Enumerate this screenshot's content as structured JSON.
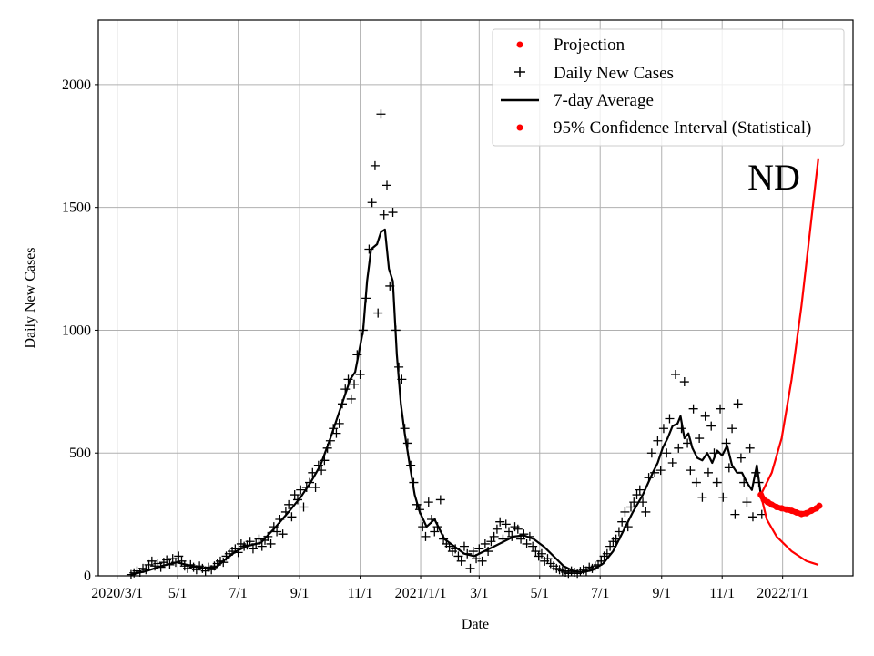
{
  "chart_data": {
    "type": "line",
    "title": "ND",
    "xlabel": "Date",
    "ylabel": "Daily New Cases",
    "x_unit": "days since 2020/3/1",
    "xlim": [
      -19,
      742
    ],
    "ylim": [
      0,
      2263
    ],
    "grid": true,
    "legend_placement": "top-right",
    "xticks": [
      {
        "day": 0,
        "label": "2020/3/1"
      },
      {
        "day": 61,
        "label": "5/1"
      },
      {
        "day": 122,
        "label": "7/1"
      },
      {
        "day": 184,
        "label": "9/1"
      },
      {
        "day": 245,
        "label": "11/1"
      },
      {
        "day": 306,
        "label": "2021/1/1"
      },
      {
        "day": 365,
        "label": "3/1"
      },
      {
        "day": 426,
        "label": "5/1"
      },
      {
        "day": 487,
        "label": "7/1"
      },
      {
        "day": 549,
        "label": "9/1"
      },
      {
        "day": 610,
        "label": "11/1"
      },
      {
        "day": 671,
        "label": "2022/1/1"
      }
    ],
    "yticks": [
      0,
      500,
      1000,
      1500,
      2000
    ],
    "legend": [
      "Projection",
      "Daily New Cases",
      "7-day Average",
      "95% Confidence Interval (Statistical)"
    ],
    "colors": {
      "projection": "#ff0000",
      "cases": "#000000",
      "average": "#000000",
      "ci": "#ff0000"
    },
    "daily_cases": {
      "start_day": 14,
      "step": 3,
      "values": [
        5,
        12,
        20,
        15,
        30,
        25,
        45,
        60,
        40,
        50,
        35,
        55,
        65,
        45,
        70,
        55,
        80,
        60,
        40,
        30,
        45,
        35,
        25,
        40,
        30,
        20,
        35,
        25,
        40,
        50,
        60,
        55,
        80,
        90,
        100,
        110,
        95,
        130,
        120,
        125,
        140,
        110,
        130,
        150,
        120,
        145,
        160,
        130,
        200,
        180,
        230,
        170,
        260,
        290,
        240,
        330,
        310,
        350,
        280,
        360,
        380,
        420,
        360,
        450,
        430,
        470,
        520,
        550,
        600,
        580,
        620,
        700,
        760,
        800,
        720,
        780,
        900,
        820,
        1000,
        1130,
        1330,
        1520,
        1670,
        1070,
        1880,
        1470,
        1590,
        1180,
        1480,
        1000,
        850,
        800,
        600,
        540,
        450,
        380,
        290,
        270,
        200,
        160,
        300,
        230,
        180,
        200,
        310,
        150,
        130,
        120,
        100,
        110,
        80,
        60,
        120,
        90,
        30,
        100,
        70,
        110,
        60,
        130,
        100,
        140,
        160,
        190,
        220,
        150,
        210,
        180,
        160,
        200,
        190,
        150,
        170,
        130,
        160,
        120,
        100,
        80,
        90,
        60,
        70,
        50,
        40,
        30,
        25,
        20,
        15,
        10,
        20,
        15,
        10,
        18,
        25,
        20,
        35,
        30,
        40,
        45,
        60,
        80,
        90,
        120,
        140,
        150,
        180,
        220,
        260,
        200,
        280,
        300,
        330,
        350,
        300,
        260,
        400,
        500,
        420,
        550,
        430,
        600,
        500,
        640,
        460,
        820,
        520,
        600,
        790,
        540,
        430,
        680,
        380,
        560,
        320,
        650,
        420,
        610,
        500,
        380,
        680,
        320,
        540,
        440,
        600,
        250,
        700,
        480,
        380,
        300,
        520,
        240,
        420,
        380,
        250
      ]
    },
    "seven_day_average": [
      [
        14,
        5
      ],
      [
        30,
        20
      ],
      [
        45,
        40
      ],
      [
        60,
        55
      ],
      [
        75,
        40
      ],
      [
        90,
        30
      ],
      [
        100,
        35
      ],
      [
        110,
        70
      ],
      [
        120,
        100
      ],
      [
        130,
        120
      ],
      [
        145,
        135
      ],
      [
        160,
        200
      ],
      [
        175,
        270
      ],
      [
        185,
        320
      ],
      [
        195,
        380
      ],
      [
        205,
        450
      ],
      [
        215,
        560
      ],
      [
        225,
        680
      ],
      [
        235,
        800
      ],
      [
        240,
        830
      ],
      [
        248,
        1000
      ],
      [
        252,
        1200
      ],
      [
        256,
        1330
      ],
      [
        262,
        1350
      ],
      [
        266,
        1400
      ],
      [
        270,
        1410
      ],
      [
        274,
        1250
      ],
      [
        278,
        1200
      ],
      [
        282,
        900
      ],
      [
        286,
        700
      ],
      [
        290,
        580
      ],
      [
        295,
        450
      ],
      [
        300,
        330
      ],
      [
        305,
        260
      ],
      [
        312,
        200
      ],
      [
        320,
        230
      ],
      [
        330,
        150
      ],
      [
        340,
        120
      ],
      [
        350,
        90
      ],
      [
        360,
        80
      ],
      [
        370,
        100
      ],
      [
        380,
        120
      ],
      [
        390,
        140
      ],
      [
        400,
        160
      ],
      [
        410,
        165
      ],
      [
        420,
        150
      ],
      [
        430,
        120
      ],
      [
        440,
        80
      ],
      [
        450,
        40
      ],
      [
        460,
        20
      ],
      [
        470,
        15
      ],
      [
        480,
        25
      ],
      [
        490,
        50
      ],
      [
        500,
        100
      ],
      [
        510,
        180
      ],
      [
        520,
        260
      ],
      [
        530,
        330
      ],
      [
        540,
        420
      ],
      [
        545,
        460
      ],
      [
        550,
        520
      ],
      [
        555,
        560
      ],
      [
        560,
        610
      ],
      [
        565,
        620
      ],
      [
        568,
        650
      ],
      [
        572,
        560
      ],
      [
        576,
        580
      ],
      [
        580,
        520
      ],
      [
        585,
        480
      ],
      [
        590,
        470
      ],
      [
        595,
        500
      ],
      [
        600,
        460
      ],
      [
        605,
        510
      ],
      [
        610,
        490
      ],
      [
        615,
        530
      ],
      [
        620,
        450
      ],
      [
        625,
        420
      ],
      [
        630,
        420
      ],
      [
        635,
        380
      ],
      [
        640,
        350
      ],
      [
        645,
        450
      ],
      [
        649,
        330
      ]
    ],
    "projection": [
      [
        649,
        330
      ],
      [
        652,
        310
      ],
      [
        656,
        300
      ],
      [
        660,
        290
      ],
      [
        665,
        280
      ],
      [
        670,
        275
      ],
      [
        675,
        270
      ],
      [
        680,
        265
      ],
      [
        685,
        258
      ],
      [
        690,
        252
      ],
      [
        695,
        255
      ],
      [
        700,
        265
      ],
      [
        705,
        275
      ],
      [
        708,
        285
      ]
    ],
    "ci_upper": [
      [
        649,
        330
      ],
      [
        660,
        420
      ],
      [
        670,
        560
      ],
      [
        680,
        800
      ],
      [
        690,
        1100
      ],
      [
        700,
        1450
      ],
      [
        707,
        1700
      ]
    ],
    "ci_lower": [
      [
        649,
        330
      ],
      [
        655,
        230
      ],
      [
        665,
        160
      ],
      [
        680,
        100
      ],
      [
        695,
        60
      ],
      [
        707,
        45
      ]
    ]
  }
}
